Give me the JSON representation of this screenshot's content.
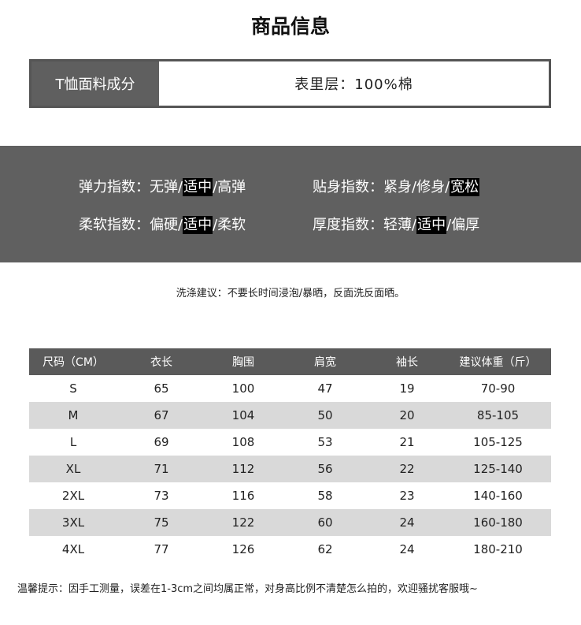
{
  "header": {
    "title": "商品信息"
  },
  "fabric": {
    "label": "T恤面料成分",
    "value": "表里层：100%棉"
  },
  "indices": {
    "separator": "/",
    "items": [
      {
        "label": "弹力指数：",
        "options": [
          "无弹",
          "适中",
          "高弹"
        ],
        "selected": 1
      },
      {
        "label": "贴身指数：",
        "options": [
          "紧身",
          "修身",
          "宽松"
        ],
        "selected": 2
      },
      {
        "label": "柔软指数：",
        "options": [
          "偏硬",
          "适中",
          "柔软"
        ],
        "selected": 1
      },
      {
        "label": "厚度指数：",
        "options": [
          "轻薄",
          "适中",
          "偏厚"
        ],
        "selected": 1
      }
    ]
  },
  "wash_note": "洗涤建议：不要长时间浸泡/暴晒，反面洗反面晒。",
  "table": {
    "header": [
      "尺码（CM）",
      "衣长",
      "胸围",
      "肩宽",
      "袖长",
      "建议体重（斤）"
    ],
    "rows": [
      [
        "S",
        65,
        100,
        47,
        19,
        "70-90"
      ],
      [
        "M",
        67,
        104,
        50,
        20,
        "85-105"
      ],
      [
        "L",
        69,
        108,
        53,
        21,
        "105-125"
      ],
      [
        "XL",
        71,
        112,
        56,
        22,
        "125-140"
      ],
      [
        "2XL",
        73,
        116,
        58,
        23,
        "140-160"
      ],
      [
        "3XL",
        75,
        122,
        60,
        24,
        "160-180"
      ],
      [
        "4XL",
        77,
        126,
        62,
        24,
        "180-210"
      ]
    ]
  },
  "footer_note": "温馨提示：因手工测量，误差在1-3cm之间均属正常，对身高比例不清楚怎么拍的，欢迎骚扰客服哦~"
}
